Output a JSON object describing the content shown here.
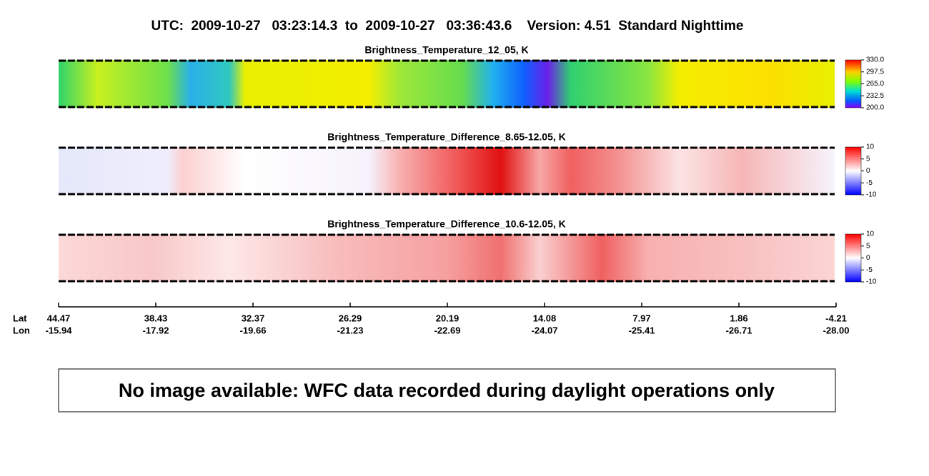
{
  "header": {
    "title": "UTC:  2009-10-27   03:23:14.3  to  2009-10-27   03:36:43.6    Version: 4.51  Standard Nighttime"
  },
  "panels": [
    {
      "title": "Brightness_Temperature_12_05, K",
      "colorbar_ticks": [
        "330.0",
        "297.5",
        "265.0",
        "232.5",
        "200.0"
      ]
    },
    {
      "title": "Brightness_Temperature_Difference_8.65-12.05, K",
      "colorbar_ticks": [
        "10",
        "5",
        "0",
        "-5",
        "-10"
      ]
    },
    {
      "title": "Brightness_Temperature_Difference_10.6-12.05, K",
      "colorbar_ticks": [
        "10",
        "5",
        "0",
        "-5",
        "-10"
      ]
    }
  ],
  "axis": {
    "lat_label": "Lat",
    "lon_label": "Lon",
    "ticks": [
      {
        "lat": "44.47",
        "lon": "-15.94"
      },
      {
        "lat": "38.43",
        "lon": "-17.92"
      },
      {
        "lat": "32.37",
        "lon": "-19.66"
      },
      {
        "lat": "26.29",
        "lon": "-21.23"
      },
      {
        "lat": "20.19",
        "lon": "-22.69"
      },
      {
        "lat": "14.08",
        "lon": "-24.07"
      },
      {
        "lat": "7.97",
        "lon": "-25.41"
      },
      {
        "lat": "1.86",
        "lon": "-26.71"
      },
      {
        "lat": "-4.21",
        "lon": "-28.00"
      }
    ]
  },
  "message": "No image available: WFC data recorded during daylight operations only"
}
